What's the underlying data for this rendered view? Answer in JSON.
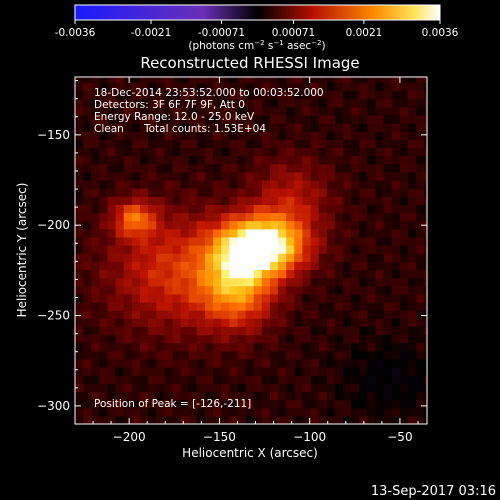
{
  "colorbar": {
    "ticks": [
      "-0.0036",
      "-0.0021",
      "-0.00071",
      "0.00071",
      "0.0021",
      "0.0036"
    ],
    "tick_values": [
      -0.0036,
      -0.0021,
      -0.00071,
      0.00071,
      0.0021,
      0.0036
    ],
    "range": [
      -0.0036,
      0.0036
    ],
    "colormap": "blue-purple-black-red-orange-yellow-white"
  },
  "chart_data": {
    "type": "heatmap",
    "title": "Reconstructed RHESSI Image",
    "xlabel": "Heliocentric X (arcsec)",
    "ylabel": "Heliocentric Y (arcsec)",
    "xlim": [
      -230,
      -35
    ],
    "ylim": [
      -310,
      -118
    ],
    "x_ticks": [
      -200,
      -150,
      -100,
      -50
    ],
    "y_ticks": [
      -150,
      -200,
      -250,
      -300
    ],
    "x_tick_labels": [
      "−200",
      "−150",
      "−100",
      "−50"
    ],
    "y_tick_labels": [
      "−150",
      "−200",
      "−250",
      "−300"
    ],
    "peak": {
      "x": -126,
      "y": -211
    },
    "sources": [
      {
        "x": -126,
        "y": -211,
        "amp": 1.0,
        "sx": 16,
        "sy": 11
      },
      {
        "x": -140,
        "y": -232,
        "amp": 0.6,
        "sx": 14,
        "sy": 16
      },
      {
        "x": -197,
        "y": -196,
        "amp": 0.45,
        "sx": 8,
        "sy": 7
      },
      {
        "x": -175,
        "y": -225,
        "amp": 0.35,
        "sx": 25,
        "sy": 22
      },
      {
        "x": -110,
        "y": -185,
        "amp": 0.25,
        "sx": 15,
        "sy": 15
      }
    ],
    "colors": {
      "low": "#1a1aff",
      "zero": "#000000",
      "mid": "#cc1a00",
      "high": "#ff9b00",
      "max": "#ffffff"
    }
  },
  "info": {
    "line1": "18-Dec-2014 23:53:52.000 to 00:03:52.000",
    "line2": "Detectors: 3F 6F 7F 9F, Att 0",
    "line3": "Energy Range: 12.0 - 25.0 keV",
    "line4_a": "Clean",
    "line4_b": "Total counts: 1.53E+04",
    "peak_label": "Position of Peak = [-126,-211]"
  },
  "footer": {
    "date": "13-Sep-2017 03:16"
  }
}
